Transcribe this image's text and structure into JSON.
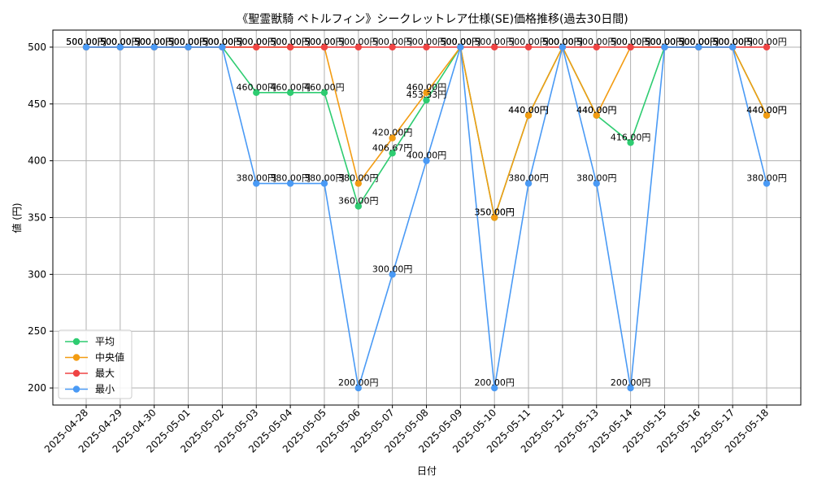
{
  "chart_data": {
    "type": "line",
    "title": "《聖霊獣騎 ペトルフィン》シークレットレア仕様(SE)価格推移(過去30日間)",
    "xlabel": "日付",
    "ylabel": "値 (円)",
    "ylim": [
      185,
      515
    ],
    "yticks": [
      200,
      250,
      300,
      350,
      400,
      450,
      500
    ],
    "categories": [
      "2025-04-28",
      "2025-04-29",
      "2025-04-30",
      "2025-05-01",
      "2025-05-02",
      "2025-05-03",
      "2025-05-04",
      "2025-05-05",
      "2025-05-06",
      "2025-05-07",
      "2025-05-08",
      "2025-05-09",
      "2025-05-10",
      "2025-05-11",
      "2025-05-12",
      "2025-05-13",
      "2025-05-14",
      "2025-05-15",
      "2025-05-16",
      "2025-05-17",
      "2025-05-18"
    ],
    "grid": true,
    "legend_position": "lower-left",
    "label_suffix": "円",
    "series": [
      {
        "name": "平均",
        "color": "#2ecc71",
        "values": [
          500,
          500,
          500,
          500,
          500,
          460,
          460,
          460,
          360,
          406.67,
          453.33,
          500,
          350,
          440,
          500,
          440,
          416,
          500,
          500,
          500,
          440
        ]
      },
      {
        "name": "中央値",
        "color": "#f39c12",
        "values": [
          500,
          500,
          500,
          500,
          500,
          500,
          500,
          500,
          380,
          420,
          460,
          500,
          350,
          440,
          500,
          440,
          500,
          500,
          500,
          500,
          440
        ]
      },
      {
        "name": "最大",
        "color": "#ef4444",
        "values": [
          500,
          500,
          500,
          500,
          500,
          500,
          500,
          500,
          500,
          500,
          500,
          500,
          500,
          500,
          500,
          500,
          500,
          500,
          500,
          500,
          500
        ]
      },
      {
        "name": "最小",
        "color": "#4a9af5",
        "values": [
          500,
          500,
          500,
          500,
          500,
          380,
          380,
          380,
          200,
          300,
          400,
          500,
          200,
          380,
          500,
          380,
          200,
          500,
          500,
          500,
          380
        ]
      }
    ]
  }
}
